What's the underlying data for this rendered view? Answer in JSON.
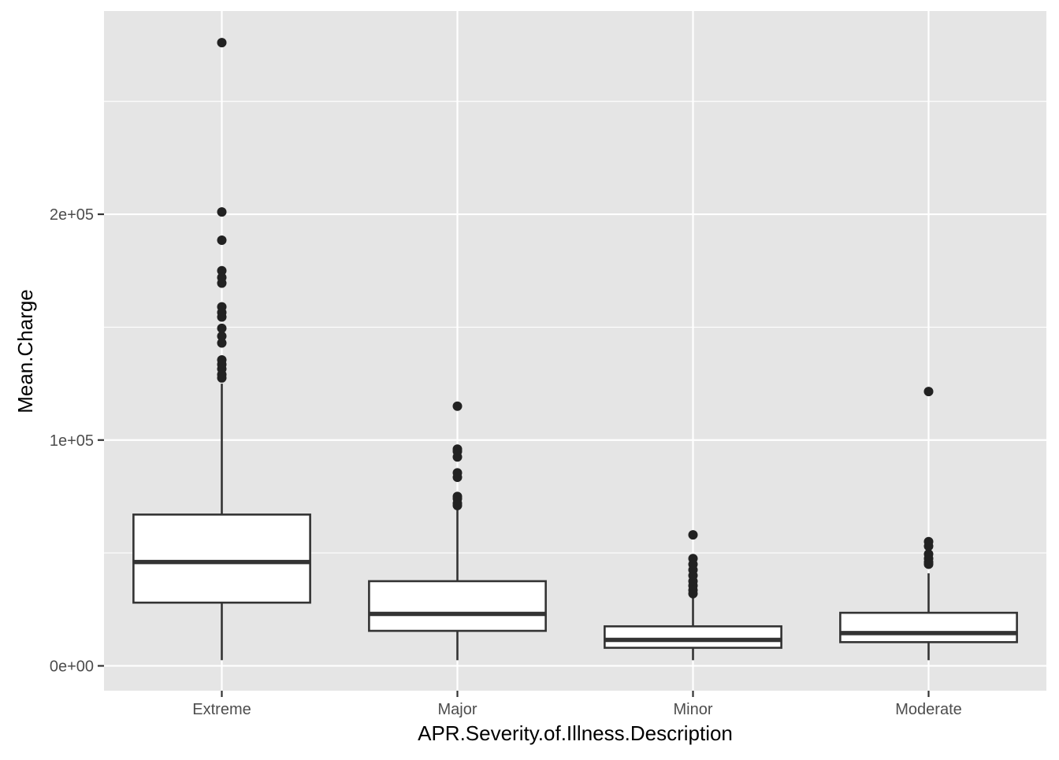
{
  "chart_data": {
    "type": "boxplot",
    "xlabel": "APR.Severity.of.Illness.Description",
    "ylabel": "Mean.Charge",
    "ylim": [
      -11000,
      290000
    ],
    "y_ticks": [
      0,
      100000,
      200000
    ],
    "y_tick_labels": [
      "0e+00",
      "1e+05",
      "2e+05"
    ],
    "grid": true,
    "background": "#e5e5e5",
    "grid_color": "#ffffff",
    "box_fill": "#ffffff",
    "line_color": "#333333",
    "point_color": "#222222",
    "categories": [
      "Extreme",
      "Major",
      "Minor",
      "Moderate"
    ],
    "boxes": [
      {
        "category": "Extreme",
        "whisker_low": 2500,
        "q1": 28000,
        "median": 46000,
        "q3": 67000,
        "whisker_high": 125000,
        "outliers": [
          276000,
          201000,
          188500,
          175000,
          172000,
          169500,
          159000,
          156500,
          154500,
          149500,
          146000,
          143000,
          135500,
          133500,
          131500,
          129000,
          127500
        ]
      },
      {
        "category": "Major",
        "whisker_low": 2500,
        "q1": 15500,
        "median": 23000,
        "q3": 37500,
        "whisker_high": 70000,
        "outliers": [
          115000,
          96000,
          95000,
          92500,
          85500,
          83500,
          75000,
          74000,
          72000,
          71000
        ]
      },
      {
        "category": "Minor",
        "whisker_low": 2500,
        "q1": 8000,
        "median": 11500,
        "q3": 17500,
        "whisker_high": 30000,
        "outliers": [
          58000,
          47500,
          45000,
          42500,
          40000,
          37500,
          35500,
          33500,
          32000
        ]
      },
      {
        "category": "Moderate",
        "whisker_low": 2500,
        "q1": 10500,
        "median": 14500,
        "q3": 23500,
        "whisker_high": 41000,
        "outliers": [
          121500,
          55000,
          53000,
          49500,
          47500,
          46000,
          45000
        ]
      }
    ]
  }
}
